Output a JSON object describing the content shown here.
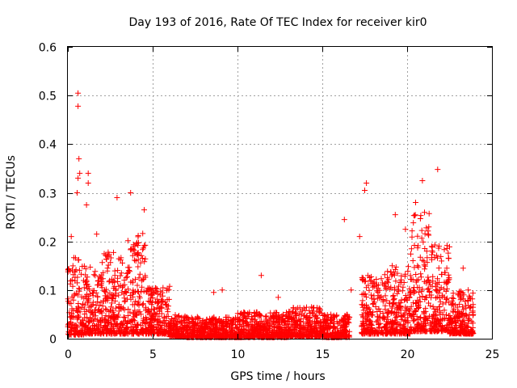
{
  "chart_data": {
    "type": "scatter",
    "title": "Day 193 of 2016, Rate Of TEC Index for receiver kir0",
    "xlabel": "GPS time / hours",
    "ylabel": "ROTI / TECUs",
    "xlim": [
      0,
      25
    ],
    "ylim": [
      0,
      0.6
    ],
    "xticks": [
      "0",
      "5",
      "10",
      "15",
      "20",
      "25"
    ],
    "yticks": [
      "0",
      "0.1",
      "0.2",
      "0.3",
      "0.4",
      "0.5",
      "0.6"
    ],
    "grid": true,
    "marker": "+",
    "color": "#ff0000",
    "series": [
      {
        "name": "ROTI",
        "notable_points": [
          [
            0.6,
            0.505
          ],
          [
            0.6,
            0.478
          ],
          [
            0.65,
            0.37
          ],
          [
            0.7,
            0.34
          ],
          [
            0.6,
            0.33
          ],
          [
            1.2,
            0.34
          ],
          [
            1.2,
            0.32
          ],
          [
            0.55,
            0.3
          ],
          [
            1.1,
            0.275
          ],
          [
            2.9,
            0.29
          ],
          [
            3.7,
            0.3
          ],
          [
            4.5,
            0.265
          ],
          [
            16.3,
            0.245
          ],
          [
            17.6,
            0.32
          ],
          [
            17.5,
            0.305
          ],
          [
            21.8,
            0.348
          ],
          [
            20.9,
            0.325
          ],
          [
            20.5,
            0.28
          ],
          [
            19.3,
            0.255
          ],
          [
            19.9,
            0.225
          ],
          [
            9.1,
            0.1
          ],
          [
            8.6,
            0.095
          ],
          [
            11.4,
            0.13
          ],
          [
            12.4,
            0.085
          ],
          [
            16.7,
            0.1
          ],
          [
            23.3,
            0.145
          ],
          [
            23.6,
            0.1
          ],
          [
            0.2,
            0.21
          ],
          [
            1.7,
            0.215
          ],
          [
            17.2,
            0.21
          ]
        ],
        "bands": [
          {
            "x": [
              0.0,
              1.0
            ],
            "y_low": 0.008,
            "y_high": 0.17
          },
          {
            "x": [
              1.0,
              2.0
            ],
            "y_low": 0.01,
            "y_high": 0.16
          },
          {
            "x": [
              2.0,
              3.5
            ],
            "y_low": 0.01,
            "y_high": 0.18
          },
          {
            "x": [
              3.5,
              4.6
            ],
            "y_low": 0.01,
            "y_high": 0.22
          },
          {
            "x": [
              4.6,
              6.0
            ],
            "y_low": 0.01,
            "y_high": 0.11
          },
          {
            "x": [
              6.0,
              7.0
            ],
            "y_low": 0.004,
            "y_high": 0.05
          },
          {
            "x": [
              7.0,
              10.0
            ],
            "y_low": 0.003,
            "y_high": 0.045
          },
          {
            "x": [
              10.0,
              13.0
            ],
            "y_low": 0.003,
            "y_high": 0.055
          },
          {
            "x": [
              13.0,
              15.0
            ],
            "y_low": 0.004,
            "y_high": 0.065
          },
          {
            "x": [
              15.0,
              16.6
            ],
            "y_low": 0.003,
            "y_high": 0.05
          },
          {
            "x": [
              17.3,
              18.5
            ],
            "y_low": 0.01,
            "y_high": 0.13
          },
          {
            "x": [
              18.5,
              20.2
            ],
            "y_low": 0.01,
            "y_high": 0.15
          },
          {
            "x": [
              20.2,
              21.3
            ],
            "y_low": 0.015,
            "y_high": 0.26
          },
          {
            "x": [
              21.3,
              22.5
            ],
            "y_low": 0.015,
            "y_high": 0.2
          },
          {
            "x": [
              22.5,
              23.9
            ],
            "y_low": 0.01,
            "y_high": 0.1
          }
        ]
      }
    ]
  }
}
